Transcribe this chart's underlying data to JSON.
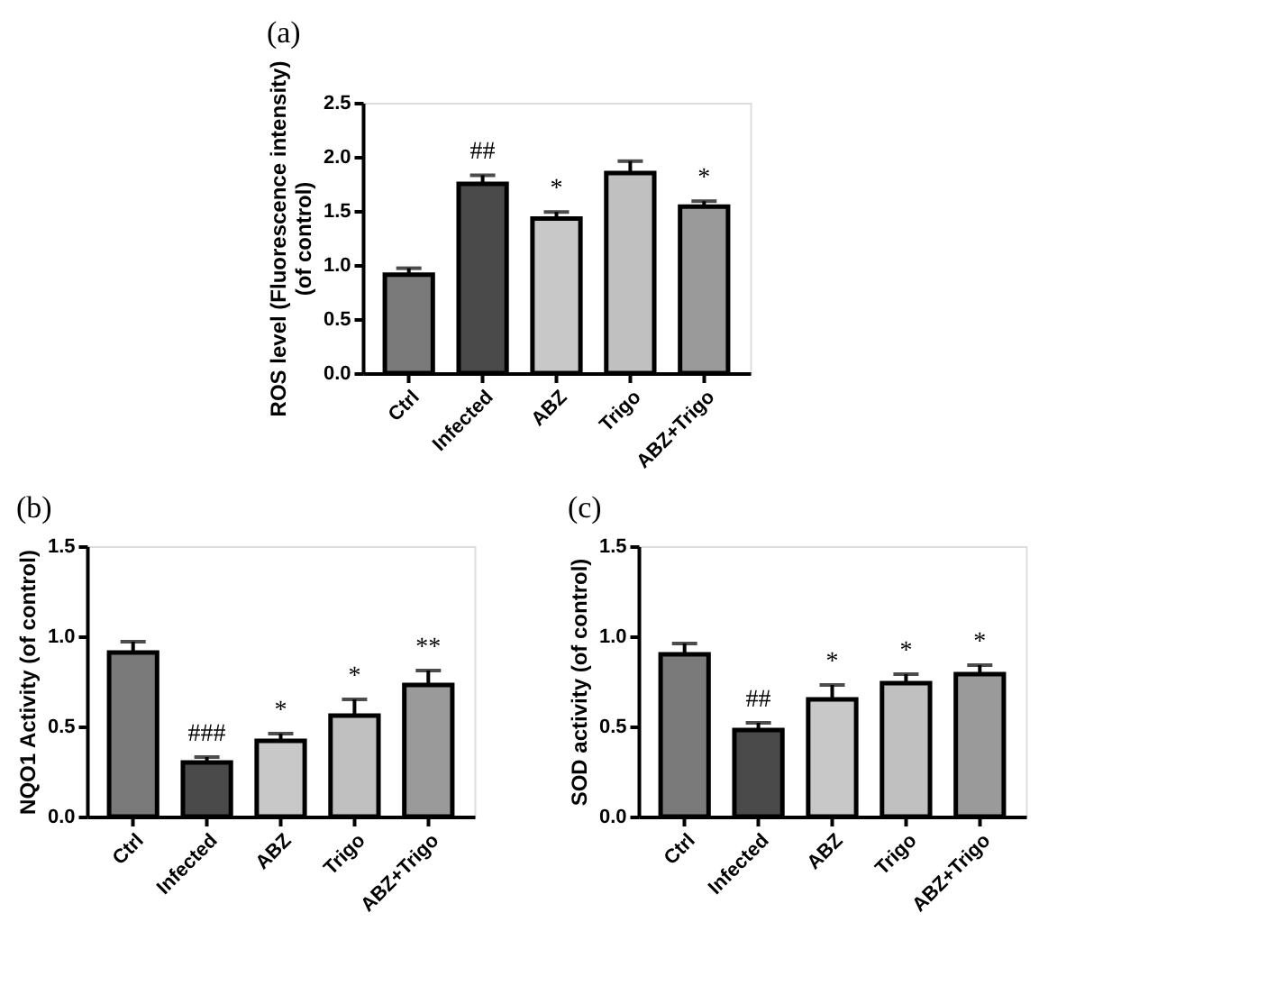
{
  "chart_data": [
    {
      "type": "bar",
      "title": "(a)",
      "ylabel": "ROS level (Fluorescence intensity)\n(of control)",
      "categories": [
        "Ctrl",
        "Infected",
        "ABZ",
        "Trigo",
        "ABZ+Trigo"
      ],
      "values": [
        0.91,
        1.75,
        1.43,
        1.85,
        1.54
      ],
      "colors": [
        "#7a7a7a",
        "#4a4a4a",
        "#c8c8c8",
        "#c0c0c0",
        "#9a9a9a"
      ],
      "errors": [
        [
          0.91,
          0.97
        ],
        [
          1.75,
          1.83
        ],
        [
          1.43,
          1.49
        ],
        [
          1.85,
          1.96
        ],
        [
          1.54,
          1.59
        ]
      ],
      "ylim": [
        0,
        2.5
      ],
      "yticks": [
        {
          "value": 0,
          "label": "0.0"
        },
        {
          "value": 0.5,
          "label": "0.5"
        },
        {
          "value": 1,
          "label": "1.0"
        },
        {
          "value": 1.5,
          "label": "1.5"
        },
        {
          "value": 2,
          "label": "2.0"
        },
        {
          "value": 2.5,
          "label": "2.5"
        }
      ],
      "grid": false,
      "value_labels": [
        null,
        "##",
        "*",
        null,
        "*"
      ]
    },
    {
      "type": "bar",
      "title": "(b)",
      "ylabel": "NQO1 Activity (of control)",
      "categories": [
        "Ctrl",
        "Infected",
        "ABZ",
        "Trigo",
        "ABZ+Trigo"
      ],
      "values": [
        0.91,
        0.3,
        0.42,
        0.56,
        0.73
      ],
      "colors": [
        "#7a7a7a",
        "#4a4a4a",
        "#c8c8c8",
        "#c0c0c0",
        "#9a9a9a"
      ],
      "errors": [
        [
          0.91,
          0.97
        ],
        [
          0.3,
          0.33
        ],
        [
          0.42,
          0.46
        ],
        [
          0.56,
          0.65
        ],
        [
          0.73,
          0.81
        ]
      ],
      "ylim": [
        0,
        1.5
      ],
      "yticks": [
        {
          "value": 0,
          "label": "0.0"
        },
        {
          "value": 0.5,
          "label": "0.5"
        },
        {
          "value": 1,
          "label": "1.0"
        },
        {
          "value": 1.5,
          "label": "1.5"
        }
      ],
      "grid": false,
      "value_labels": [
        null,
        "###",
        "*",
        "*",
        "**"
      ]
    },
    {
      "type": "bar",
      "title": "(c)",
      "ylabel": "SOD activity (of control)",
      "categories": [
        "Ctrl",
        "Infected",
        "ABZ",
        "Trigo",
        "ABZ+Trigo"
      ],
      "values": [
        0.9,
        0.48,
        0.65,
        0.74,
        0.79
      ],
      "colors": [
        "#7a7a7a",
        "#4a4a4a",
        "#c8c8c8",
        "#c0c0c0",
        "#9a9a9a"
      ],
      "errors": [
        [
          0.9,
          0.96
        ],
        [
          0.48,
          0.52
        ],
        [
          0.65,
          0.73
        ],
        [
          0.74,
          0.79
        ],
        [
          0.79,
          0.84
        ]
      ],
      "ylim": [
        0,
        1.5
      ],
      "yticks": [
        {
          "value": 0,
          "label": "0.0"
        },
        {
          "value": 0.5,
          "label": "0.5"
        },
        {
          "value": 1,
          "label": "1.0"
        },
        {
          "value": 1.5,
          "label": "1.5"
        }
      ],
      "grid": false,
      "value_labels": [
        null,
        "##",
        "*",
        "*",
        "*"
      ]
    }
  ]
}
